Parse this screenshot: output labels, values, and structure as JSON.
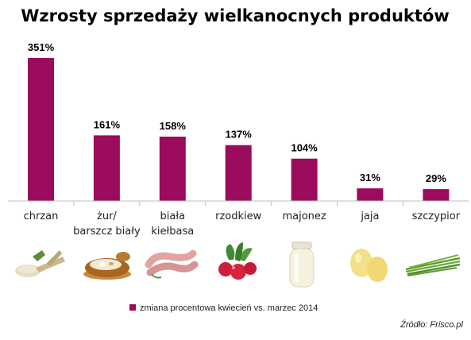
{
  "chart_data": {
    "type": "bar",
    "title": "Wzrosty sprzedaży wielkanocnych produktów",
    "categories": [
      [
        "chrzan"
      ],
      [
        "żur/",
        "barszcz biały"
      ],
      [
        "biała",
        "kiełbasa"
      ],
      [
        "rzodkiew"
      ],
      [
        "majonez"
      ],
      [
        "jaja"
      ],
      [
        "szczypior"
      ]
    ],
    "values": [
      351,
      161,
      158,
      137,
      104,
      31,
      29
    ],
    "value_labels": [
      "351%",
      "161%",
      "158%",
      "137%",
      "104%",
      "31%",
      "29%"
    ],
    "ylim": [
      0,
      351
    ],
    "grid": false,
    "legend": {
      "label": "zmiana procentowa kwiecień vs. marzec 2014",
      "position": "bottom",
      "color": "#9b0b5e"
    },
    "bar_color": "#9b0b5e"
  },
  "icons": [
    "horseradish-icon",
    "sour-soup-bowl-icon",
    "white-sausage-icon",
    "radish-icon",
    "mayonnaise-jar-icon",
    "eggs-icon",
    "chives-icon"
  ],
  "source": "Źródło: Frisco.pl"
}
